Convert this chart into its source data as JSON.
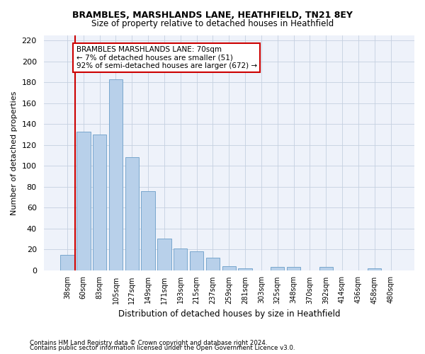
{
  "title1": "BRAMBLES, MARSHLANDS LANE, HEATHFIELD, TN21 8EY",
  "title2": "Size of property relative to detached houses in Heathfield",
  "xlabel": "Distribution of detached houses by size in Heathfield",
  "ylabel": "Number of detached properties",
  "categories": [
    "38sqm",
    "60sqm",
    "83sqm",
    "105sqm",
    "127sqm",
    "149sqm",
    "171sqm",
    "193sqm",
    "215sqm",
    "237sqm",
    "259sqm",
    "281sqm",
    "303sqm",
    "325sqm",
    "348sqm",
    "370sqm",
    "392sqm",
    "414sqm",
    "436sqm",
    "458sqm",
    "480sqm"
  ],
  "values": [
    15,
    133,
    130,
    183,
    108,
    76,
    30,
    21,
    18,
    12,
    4,
    2,
    0,
    3,
    3,
    0,
    3,
    0,
    0,
    2,
    0
  ],
  "bar_color": "#b8d0ea",
  "bar_edge_color": "#6a9ec8",
  "vline_x": 0.5,
  "vline_color": "#cc0000",
  "annotation_text": "BRAMBLES MARSHLANDS LANE: 70sqm\n← 7% of detached houses are smaller (51)\n92% of semi-detached houses are larger (672) →",
  "annotation_box_color": "#ffffff",
  "annotation_box_edge": "#cc0000",
  "footnote1": "Contains HM Land Registry data © Crown copyright and database right 2024.",
  "footnote2": "Contains public sector information licensed under the Open Government Licence v3.0.",
  "ylim": [
    0,
    225
  ],
  "yticks": [
    0,
    20,
    40,
    60,
    80,
    100,
    120,
    140,
    160,
    180,
    200,
    220
  ],
  "background_color": "#eef2fa"
}
